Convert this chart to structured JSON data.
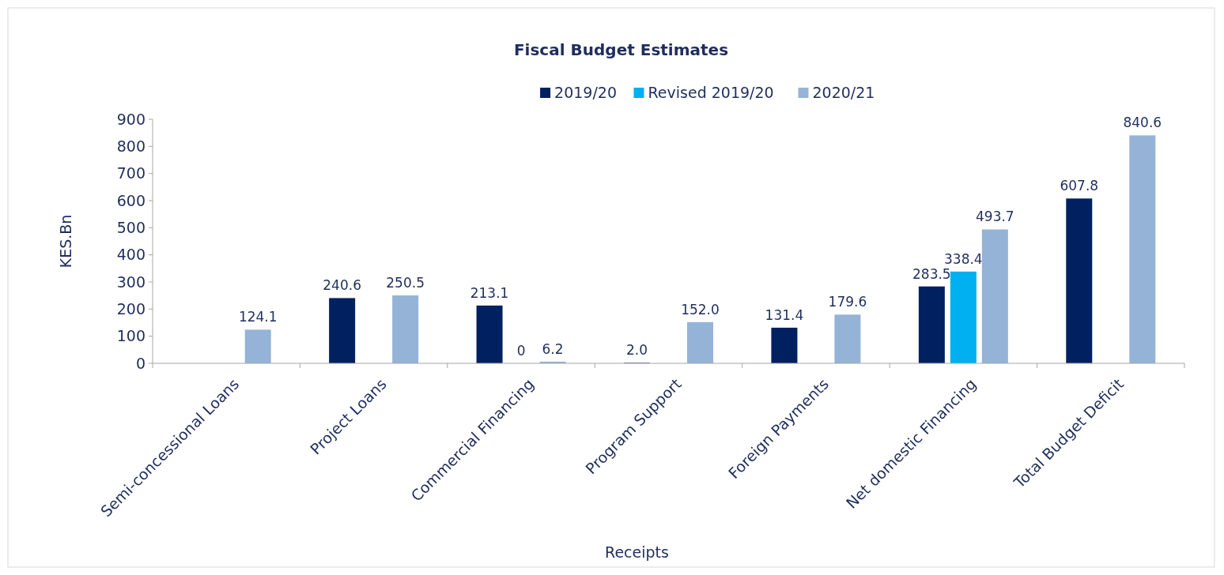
{
  "chart_data": {
    "type": "bar",
    "title": "Fiscal Budget Estimates",
    "xlabel": "Receipts",
    "ylabel": "KES.Bn",
    "categories": [
      "Semi-concessional Loans",
      "Project Loans",
      "Commercial Financing",
      "Program Support",
      "Foreign Payments",
      "Net domestic Financing",
      "Total Budget Deficit"
    ],
    "series": [
      {
        "name": "2019/20",
        "color": "#002060",
        "values": [
          null,
          240.6,
          213.1,
          2.0,
          131.4,
          283.5,
          607.8
        ],
        "value_labels": [
          null,
          "240.6",
          "213.1",
          "2.0",
          "131.4",
          "283.5",
          "607.8"
        ]
      },
      {
        "name": "Revised 2019/20",
        "color": "#00b0f0",
        "values": [
          null,
          null,
          0,
          null,
          null,
          338.4,
          null
        ],
        "value_labels": [
          null,
          null,
          "0",
          null,
          null,
          "338.4",
          null
        ]
      },
      {
        "name": "2020/21",
        "color": "#95b3d7",
        "values": [
          124.1,
          250.5,
          6.2,
          152.0,
          179.6,
          493.7,
          840.6
        ],
        "value_labels": [
          "124.1",
          "250.5",
          "6.2",
          "152.0",
          "179.6",
          "493.7",
          "840.6"
        ]
      }
    ],
    "ylim": [
      0,
      900
    ],
    "yticks": [
      0,
      100,
      200,
      300,
      400,
      500,
      600,
      700,
      800,
      900
    ],
    "grid": false,
    "legend": "top"
  }
}
